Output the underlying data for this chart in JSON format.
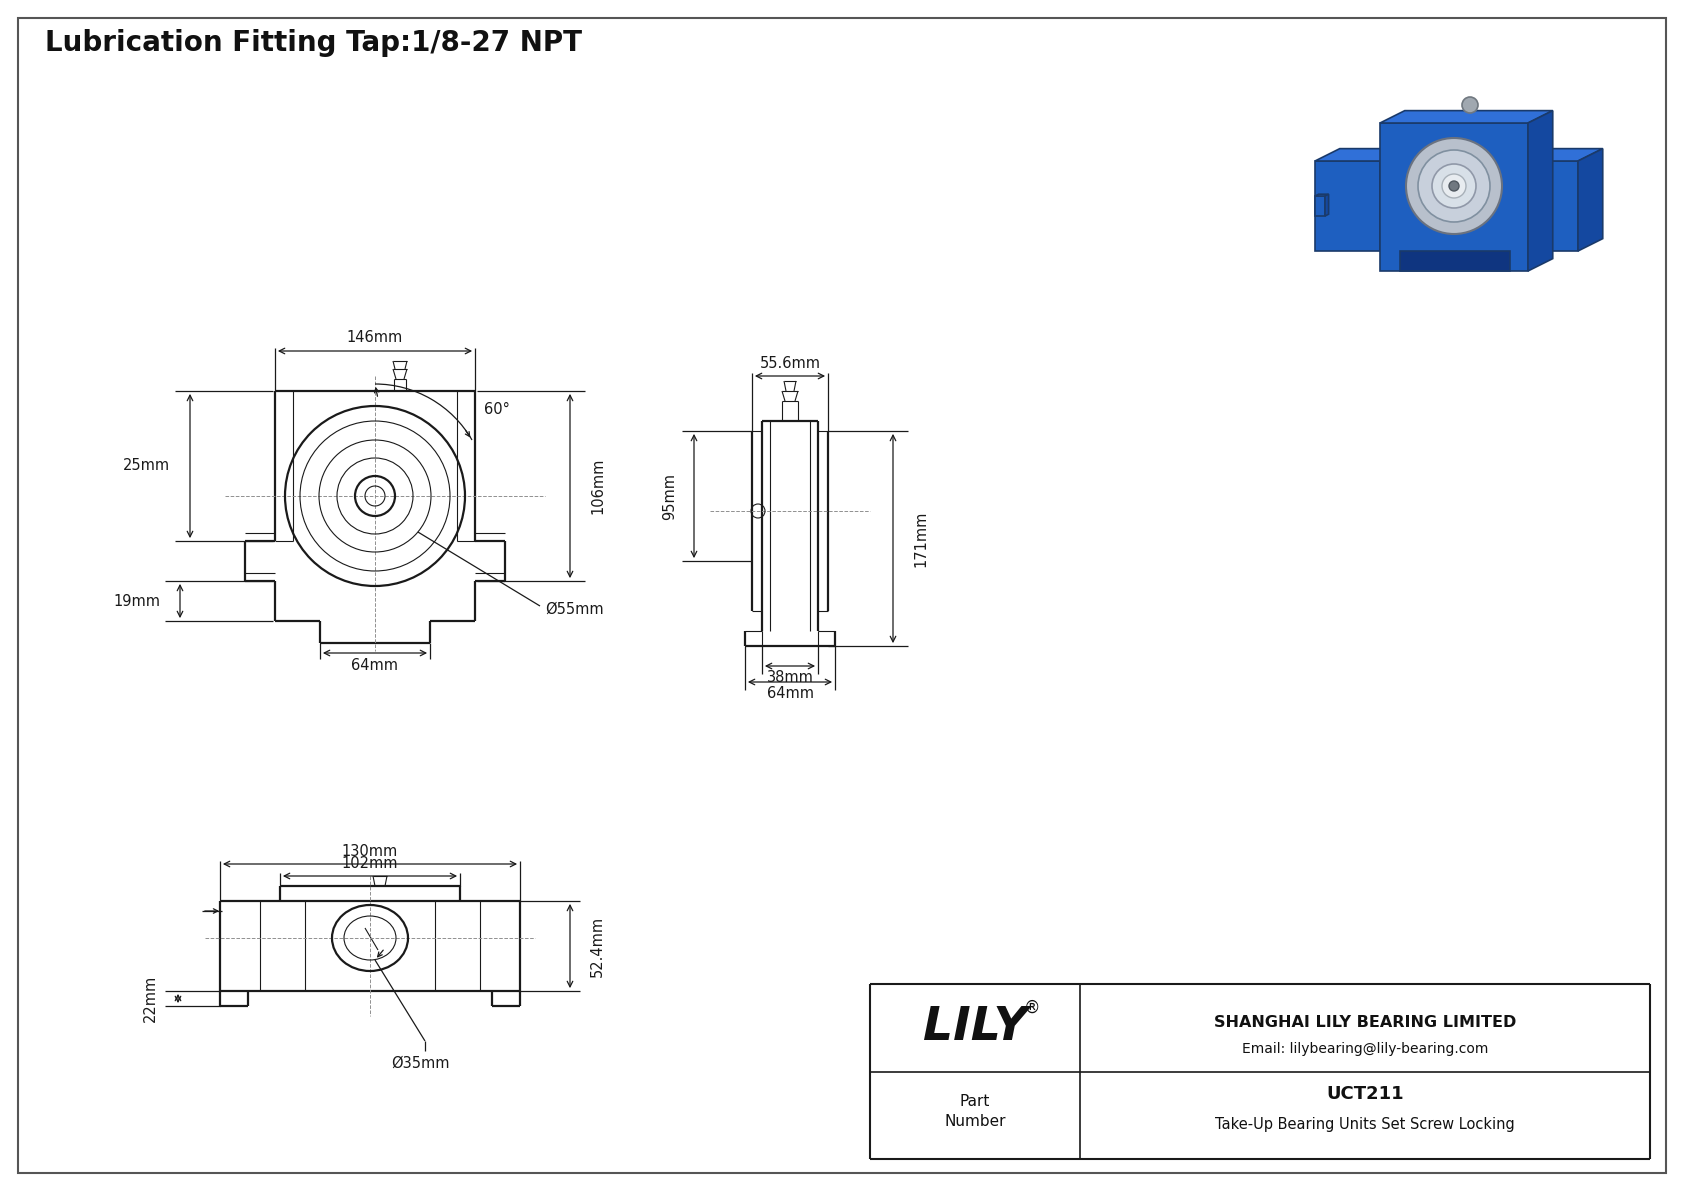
{
  "title": "Lubrication Fitting Tap:1/8-27 NPT",
  "bg_color": "#ffffff",
  "line_color": "#1a1a1a",
  "dim_color": "#1a1a1a",
  "part_number": "UCT211",
  "part_desc": "Take-Up Bearing Units Set Screw Locking",
  "company": "SHANGHAI LILY BEARING LIMITED",
  "email": "Email: lilybearing@lily-bearing.com",
  "lily_text": "LILY",
  "dim_146": "146mm",
  "dim_25": "25mm",
  "dim_19": "19mm",
  "dim_64a": "64mm",
  "dim_phi55": "Ø55mm",
  "dim_106": "106mm",
  "dim_60": "60°",
  "dim_55p6": "55.6mm",
  "dim_95": "95mm",
  "dim_171": "171mm",
  "dim_38": "38mm",
  "dim_64b": "64mm",
  "dim_130": "130mm",
  "dim_102": "102mm",
  "dim_52p4": "52.4mm",
  "dim_22": "22mm",
  "dim_phi35": "Ø35mm"
}
